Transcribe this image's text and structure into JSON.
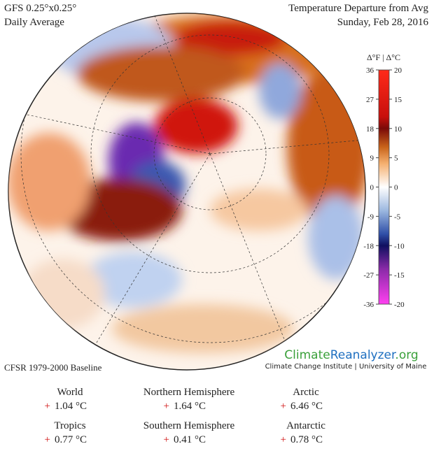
{
  "header": {
    "model": "GFS 0.25°x0.25°",
    "period": "Daily Average",
    "title": "Temperature Departure from Avg",
    "date": "Sunday, Feb 28, 2016"
  },
  "legend": {
    "title": "Δ°F | Δ°C",
    "fahrenheit": [
      36,
      27,
      18,
      9,
      0,
      -9,
      -18,
      -27,
      -36
    ],
    "celsius": [
      20,
      15,
      10,
      5,
      0,
      -5,
      -10,
      -15,
      -20
    ]
  },
  "baseline": "CFSR 1979-2000 Baseline",
  "logo": {
    "parts": [
      "Climate",
      "Reanalyzer",
      ".org"
    ],
    "subtitle": "Climate Change Institute | University of Maine"
  },
  "stats": [
    {
      "name": "World",
      "sign": "+",
      "value": "1.04 °C"
    },
    {
      "name": "Northern Hemisphere",
      "sign": "+",
      "value": "1.64 °C"
    },
    {
      "name": "Arctic",
      "sign": "+",
      "value": "6.46 °C"
    },
    {
      "name": "Tropics",
      "sign": "+",
      "value": "0.77 °C"
    },
    {
      "name": "Southern Hemisphere",
      "sign": "+",
      "value": "0.41 °C"
    },
    {
      "name": "Antarctic",
      "sign": "+",
      "value": "0.78 °C"
    }
  ]
}
